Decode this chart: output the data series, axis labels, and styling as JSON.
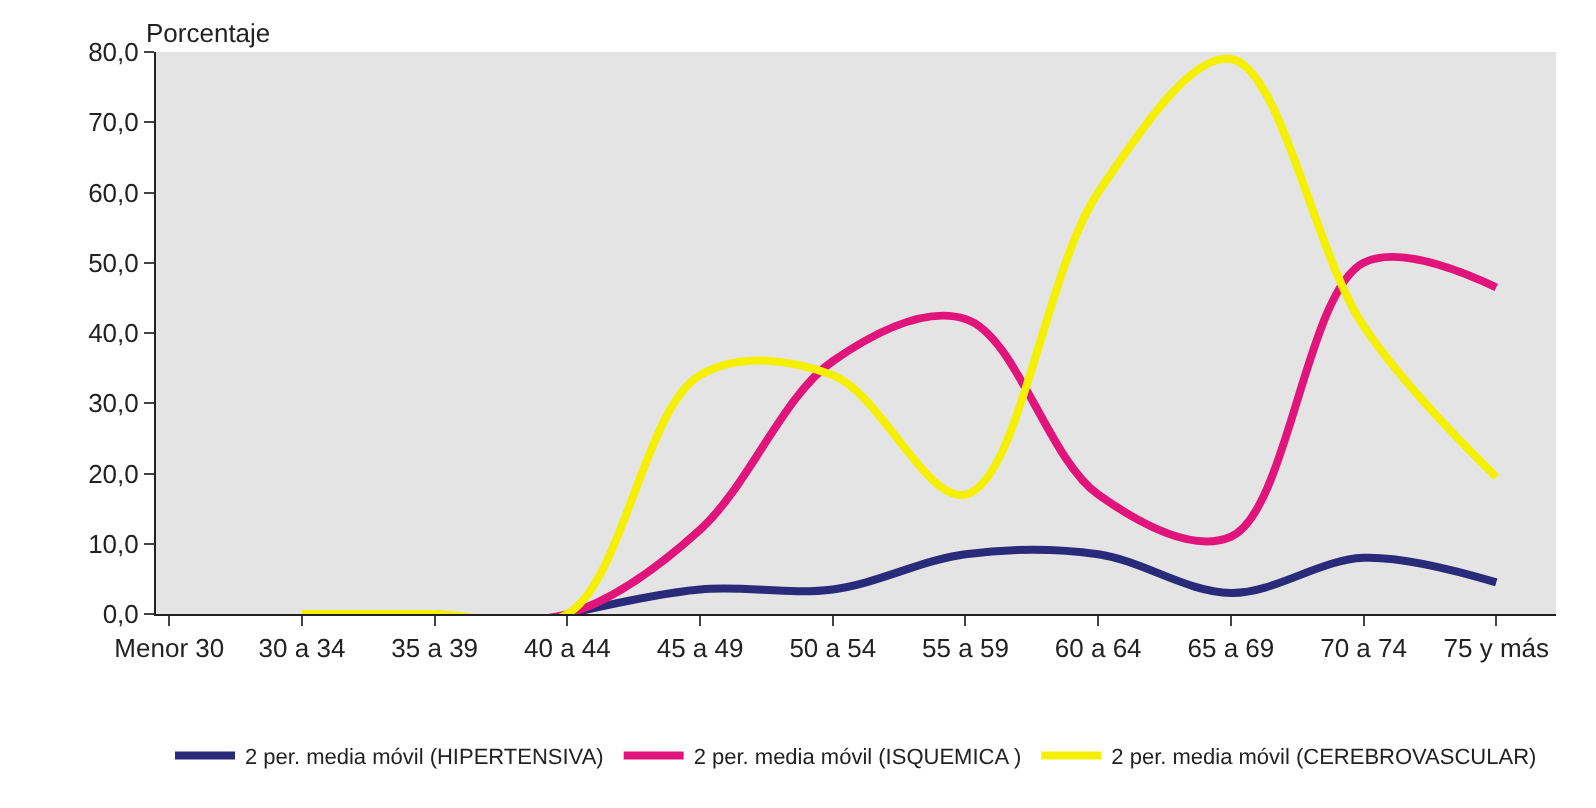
{
  "chart_data": {
    "type": "line",
    "ylabel": "Porcentaje",
    "categories": [
      "Menor 30",
      "30 a 34",
      "35 a 39",
      "40 a 44",
      "45 a 49",
      "50 a 54",
      "55 a 59",
      "60 a 64",
      "65 a 69",
      "70 a 74",
      "75 y más"
    ],
    "series": [
      {
        "name": "2 per. media móvil (HIPERTENSIVA)",
        "color": "#2a2a7a",
        "values": [
          null,
          null,
          null,
          0,
          3.5,
          3.5,
          8.5,
          8.5,
          3,
          8,
          4.5
        ]
      },
      {
        "name": "2 per. media móvil (ISQUEMICA )",
        "color": "#e0147a",
        "values": [
          null,
          null,
          0,
          0,
          12,
          36,
          42,
          17,
          11,
          50,
          46.5
        ]
      },
      {
        "name": "2 per. media móvil (CEREBROVASCULAR)",
        "color": "#f5f000",
        "values": [
          null,
          0,
          0,
          0,
          34,
          34,
          17,
          60,
          79,
          41,
          19.5
        ]
      }
    ],
    "ylim": [
      0,
      80
    ],
    "yticks": [
      {
        "value": 0,
        "label": "0,0"
      },
      {
        "value": 10,
        "label": "10,0"
      },
      {
        "value": 20,
        "label": "20,0"
      },
      {
        "value": 30,
        "label": "30,0"
      },
      {
        "value": 40,
        "label": "40,0"
      },
      {
        "value": 50,
        "label": "50,0"
      },
      {
        "value": 60,
        "label": "60,0"
      },
      {
        "value": 70,
        "label": "70,0"
      },
      {
        "value": 80,
        "label": "80,0"
      }
    ],
    "legend": "bottom",
    "grid": false,
    "marker": "none",
    "line_style": "solid"
  }
}
